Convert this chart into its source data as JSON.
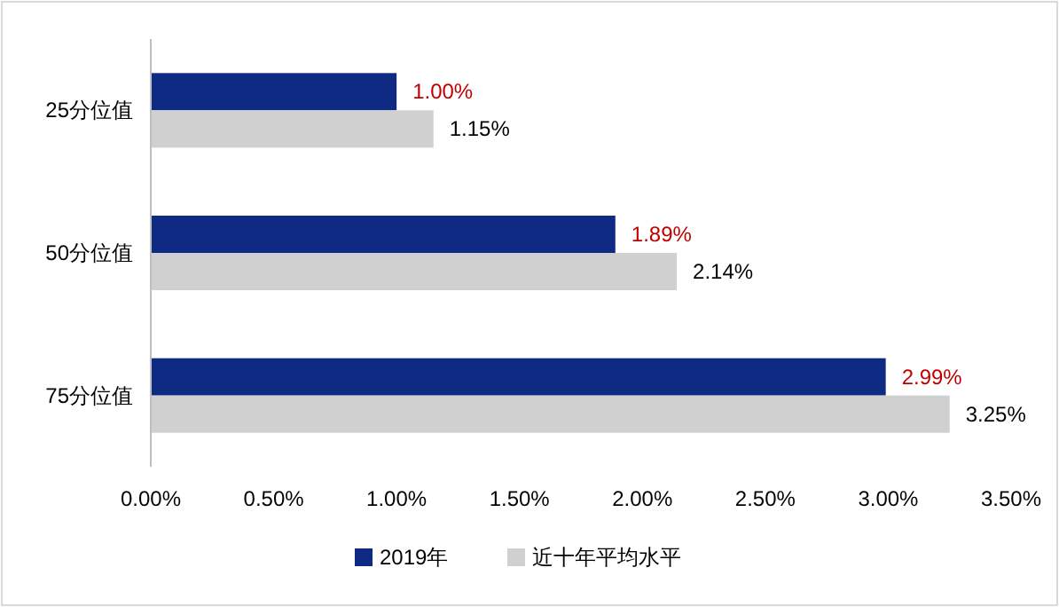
{
  "chart_data": {
    "type": "bar",
    "orientation": "horizontal",
    "categories": [
      "25分位值",
      "50分位值",
      "75分位值"
    ],
    "series": [
      {
        "name": "2019年",
        "color": "#0e2a82",
        "values": [
          1.0,
          1.89,
          2.99
        ],
        "value_labels": [
          "1.00%",
          "1.89%",
          "2.99%"
        ]
      },
      {
        "name": "近十年平均水平",
        "color": "#d0d0d0",
        "values": [
          1.15,
          2.14,
          3.25
        ],
        "value_labels": [
          "1.15%",
          "2.14%",
          "3.25%"
        ]
      }
    ],
    "xlim": [
      0,
      3.5
    ],
    "xticks": [
      {
        "value": 0,
        "label": "0.00%"
      },
      {
        "value": 0.5,
        "label": "0.50%"
      },
      {
        "value": 1,
        "label": "1.00%"
      },
      {
        "value": 1.5,
        "label": "1.50%"
      },
      {
        "value": 2,
        "label": "2.00%"
      },
      {
        "value": 2.5,
        "label": "2.50%"
      },
      {
        "value": 3,
        "label": "3.00%"
      },
      {
        "value": 3.5,
        "label": "3.50%"
      }
    ],
    "grid": false,
    "legend": "bottom"
  }
}
